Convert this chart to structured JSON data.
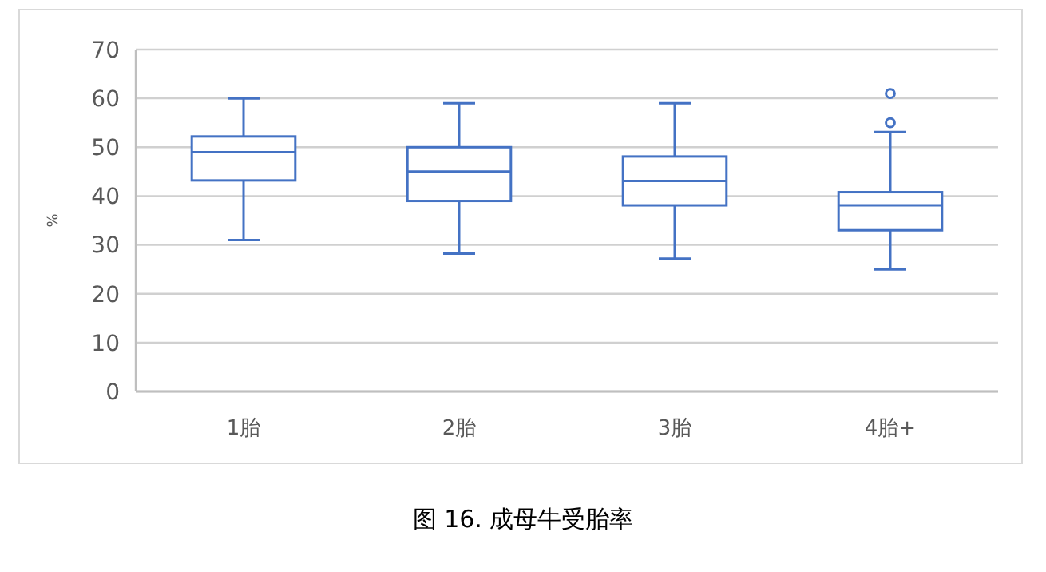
{
  "chart_data": {
    "type": "box",
    "title": "图  16. 成母牛受胎率",
    "ylabel": "%",
    "categories": [
      "1胎",
      "2胎",
      "3胎",
      "4胎+"
    ],
    "color": "#4472c4",
    "grid": "y",
    "ylim": [
      0,
      70
    ],
    "yticks": [
      0,
      10,
      20,
      30,
      40,
      50,
      60,
      70
    ],
    "boxes": [
      {
        "low": 31,
        "q1": 43.2,
        "median": 49,
        "q3": 52.2,
        "high": 60
      },
      {
        "low": 28.2,
        "q1": 39,
        "median": 45,
        "q3": 50,
        "high": 59
      },
      {
        "low": 27.2,
        "q1": 38.1,
        "median": 43.1,
        "q3": 48.1,
        "high": 59
      },
      {
        "low": 25,
        "q1": 33,
        "median": 38.1,
        "q3": 40.8,
        "high": 53.1,
        "outliers": [
          55,
          61
        ]
      }
    ]
  }
}
